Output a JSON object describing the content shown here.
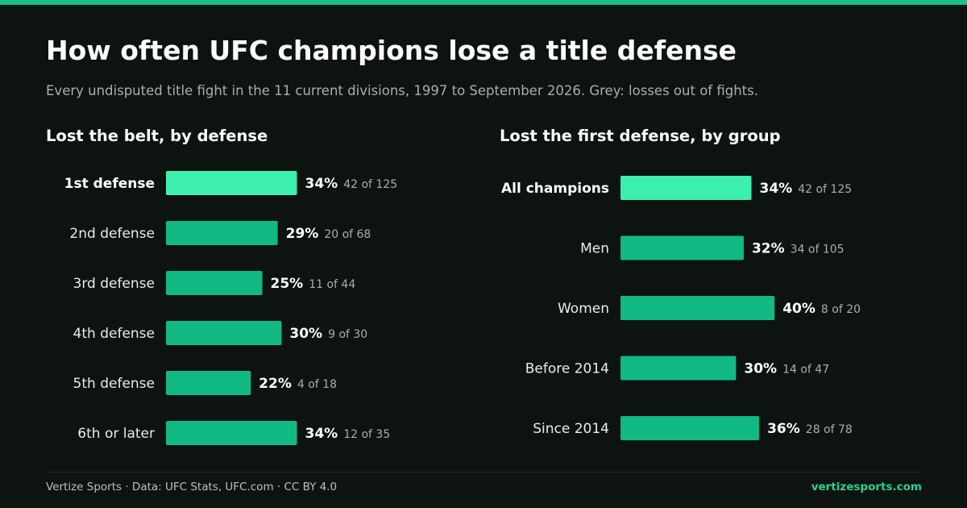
{
  "page": {
    "title": "How often UFC champions lose a title defense",
    "subtitle": "Every undisputed title fight in the 11 current divisions, 1997 to September 2026. Grey: losses out of fights.",
    "footer_source": "Vertize Sports · Data: UFC Stats, UFC.com · CC BY 4.0",
    "footer_site": "vertizesports.com"
  },
  "colors": {
    "background": "#0d1311",
    "accent": "#1dbf85",
    "bar": "#13b985",
    "bar_highlight": "#3ef0ad",
    "label": "#e8ecea",
    "muted": "#a7b0ad"
  },
  "chart_data": [
    {
      "type": "bar",
      "orientation": "horizontal",
      "title": "Lost the belt, by defense",
      "categories": [
        "1st defense",
        "2nd defense",
        "3rd defense",
        "4th defense",
        "5th defense",
        "6th or later"
      ],
      "values": [
        34,
        29,
        25,
        30,
        22,
        34
      ],
      "value_labels": [
        "34%",
        "29%",
        "25%",
        "30%",
        "22%",
        "34%"
      ],
      "counts": [
        "42 of 125",
        "20 of 68",
        "11 of 44",
        "9 of 30",
        "4 of 18",
        "12 of 35"
      ],
      "highlight_index": 0,
      "unit": "%",
      "grid": false
    },
    {
      "type": "bar",
      "orientation": "horizontal",
      "title": "Lost the first defense, by group",
      "categories": [
        "All champions",
        "Men",
        "Women",
        "Before 2014",
        "Since 2014"
      ],
      "values": [
        34,
        32,
        40,
        30,
        36
      ],
      "value_labels": [
        "34%",
        "32%",
        "40%",
        "30%",
        "36%"
      ],
      "counts": [
        "42 of 125",
        "34 of 105",
        "8 of 20",
        "14 of 47",
        "28 of 78"
      ],
      "highlight_index": 0,
      "unit": "%",
      "grid": false
    }
  ]
}
